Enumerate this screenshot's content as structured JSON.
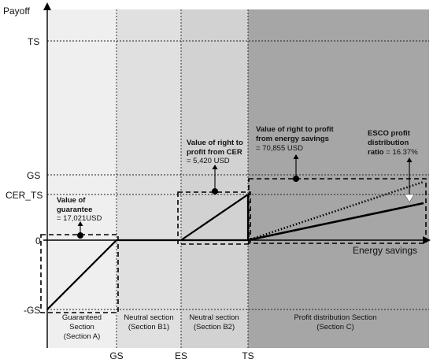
{
  "axes": {
    "y_title": "Payoff",
    "x_title": "Energy savings",
    "y_ticks": [
      "TS",
      "GS",
      "CER_TS",
      "0",
      "-GS"
    ],
    "x_ticks": [
      "GS",
      "ES",
      "TS"
    ]
  },
  "sections": [
    {
      "line1": "Guaranteed",
      "line2": "Section",
      "line3": "(Section A)"
    },
    {
      "line1": "Neutral section",
      "line2": "(Section B1)"
    },
    {
      "line1": "Neutral section",
      "line2": "(Section B2)"
    },
    {
      "line1": "Profit distribution Section",
      "line2": "(Section C)"
    }
  ],
  "annotations": {
    "guarantee": {
      "title1": "Value of",
      "title2": "guarantee",
      "value": "= 17,021USD"
    },
    "cer": {
      "title1": "Value of right to",
      "title2": "profit from CER",
      "value": "= 5,420 USD"
    },
    "energy": {
      "title1": "Value of right to profit",
      "title2": "from energy savings",
      "value": "= 70,855 USD"
    },
    "esco": {
      "title1": "ESCO profit",
      "title2": "distribution",
      "title3": "ratio",
      "value": "= 16.37%"
    }
  },
  "colors": {
    "section_a": "#efefef",
    "section_b1": "#e0e0e0",
    "section_b2": "#d2d2d2",
    "section_c": "#a6a6a6",
    "line": "#000000"
  }
}
